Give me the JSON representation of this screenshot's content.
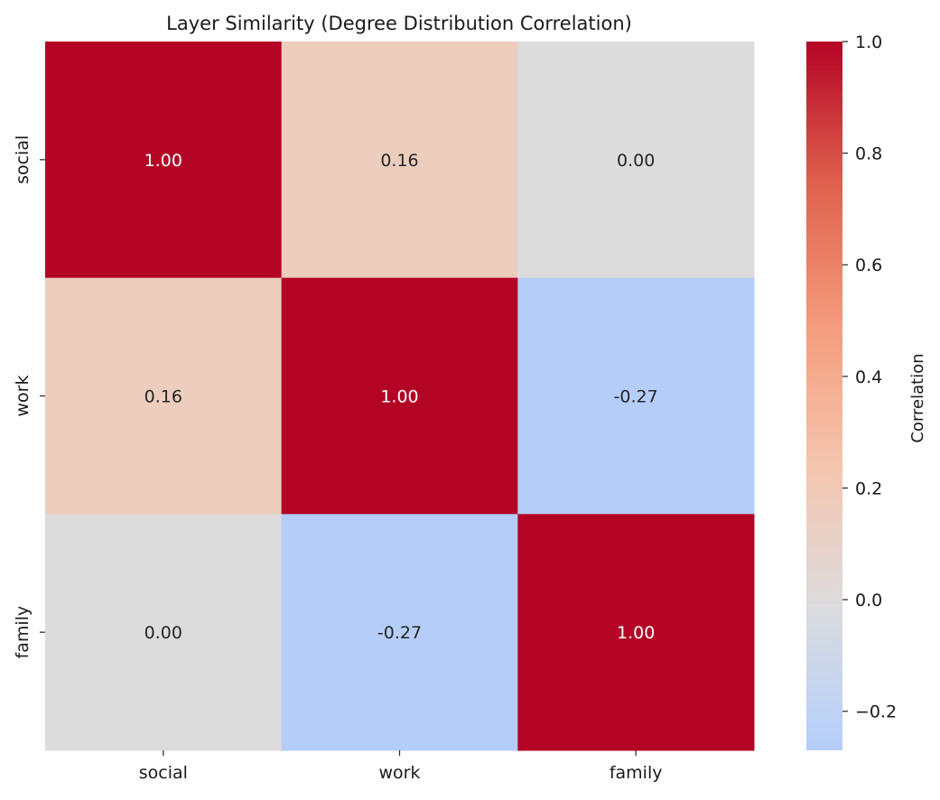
{
  "chart_data": {
    "type": "heatmap",
    "title": "Layer Similarity (Degree Distribution Correlation)",
    "xlabel": "",
    "ylabel": "",
    "x_categories": [
      "social",
      "work",
      "family"
    ],
    "y_categories": [
      "social",
      "work",
      "family"
    ],
    "values": [
      [
        1.0,
        0.16,
        0.0
      ],
      [
        0.16,
        1.0,
        -0.27
      ],
      [
        0.0,
        -0.27,
        1.0
      ]
    ],
    "annotations": [
      [
        "1.00",
        "0.16",
        "0.00"
      ],
      [
        "0.16",
        "1.00",
        "-0.27"
      ],
      [
        "0.00",
        "-0.27",
        "1.00"
      ]
    ],
    "colormap": "coolwarm",
    "center": 0.0,
    "vmin": -0.27,
    "vmax": 1.0,
    "colorbar": {
      "label": "Correlation",
      "ticks": [
        1.0,
        0.8,
        0.6,
        0.4,
        0.2,
        0.0,
        -0.2
      ],
      "tick_labels": [
        "1.0",
        "0.8",
        "0.6",
        "0.4",
        "0.2",
        "0.0",
        "−0.2"
      ],
      "placement": "right"
    },
    "colors": {
      "max": "#b40426",
      "mid": "#dddcdc",
      "min": "#b5cdf8"
    }
  }
}
